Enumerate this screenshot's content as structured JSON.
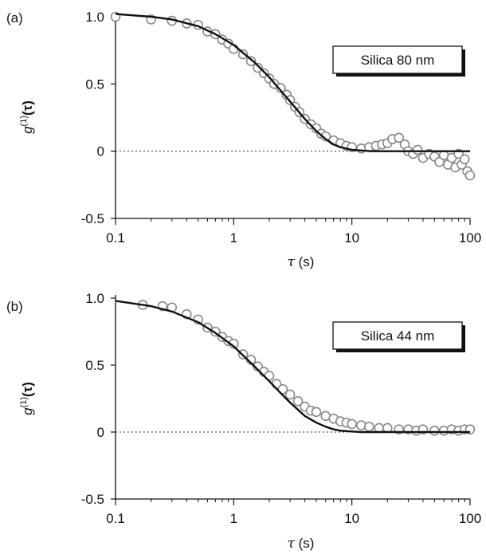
{
  "chart_data": [
    {
      "type": "scatter",
      "panel_label": "(a)",
      "annotation": "Silica 80 nm",
      "xlabel": {
        "symbol": "τ",
        "unit": " (s)"
      },
      "ylabel": {
        "base": "g",
        "sup": "(1)",
        "arg": "(τ)"
      },
      "xscale": "log",
      "xlim": [
        0.1,
        100
      ],
      "ylim": [
        -0.5,
        1.0
      ],
      "xticks": [
        {
          "value": 0.1,
          "label": "0.1"
        },
        {
          "value": 1,
          "label": "1"
        },
        {
          "value": 10,
          "label": "10"
        },
        {
          "value": 100,
          "label": "100"
        }
      ],
      "yticks": [
        {
          "value": 1.0,
          "label": "1.0"
        },
        {
          "value": 0.5,
          "label": "0.5"
        },
        {
          "value": 0,
          "label": "0"
        },
        {
          "value": -0.5,
          "label": "-0.5"
        }
      ],
      "reference_line_y": 0,
      "series": [
        {
          "kind": "points",
          "x": [
            0.1,
            0.2,
            0.3,
            0.4,
            0.5,
            0.6,
            0.7,
            0.8,
            0.9,
            1.0,
            1.2,
            1.4,
            1.6,
            1.8,
            2.0,
            2.2,
            2.5,
            2.8,
            3.0,
            3.3,
            3.6,
            4.0,
            4.5,
            5.0,
            5.5,
            6.0,
            7.0,
            8.0,
            9.0,
            10,
            12,
            14,
            16,
            18,
            20,
            22,
            25,
            28,
            30,
            33,
            36,
            40,
            45,
            50,
            55,
            60,
            65,
            70,
            75,
            80,
            85,
            90,
            95,
            100
          ],
          "y": [
            1.0,
            0.98,
            0.97,
            0.95,
            0.94,
            0.89,
            0.87,
            0.83,
            0.8,
            0.76,
            0.72,
            0.67,
            0.62,
            0.58,
            0.54,
            0.5,
            0.47,
            0.42,
            0.38,
            0.33,
            0.29,
            0.24,
            0.2,
            0.17,
            0.13,
            0.11,
            0.08,
            0.06,
            0.04,
            0.03,
            0.02,
            0.03,
            0.04,
            0.05,
            0.06,
            0.09,
            0.1,
            0.05,
            0.0,
            -0.02,
            0.01,
            -0.05,
            -0.02,
            -0.04,
            -0.08,
            -0.03,
            -0.1,
            -0.05,
            -0.12,
            -0.02,
            -0.1,
            -0.06,
            -0.15,
            -0.18
          ]
        },
        {
          "kind": "fit",
          "x": [
            0.1,
            0.2,
            0.3,
            0.5,
            0.7,
            1.0,
            1.5,
            2.0,
            2.5,
            3.0,
            4.0,
            5.0,
            6.0,
            7.0,
            8.0,
            10,
            12,
            15,
            20,
            30,
            50,
            100
          ],
          "y": [
            1.02,
            1.0,
            0.98,
            0.93,
            0.87,
            0.79,
            0.66,
            0.55,
            0.45,
            0.37,
            0.24,
            0.15,
            0.09,
            0.05,
            0.03,
            0.01,
            0.005,
            0.0,
            0.0,
            0.0,
            0.0,
            0.0
          ]
        }
      ]
    },
    {
      "type": "scatter",
      "panel_label": "(b)",
      "annotation": "Silica 44 nm",
      "xlabel": {
        "symbol": "τ",
        "unit": " (s)"
      },
      "ylabel": {
        "base": "g",
        "sup": "(1)",
        "arg": "(τ)"
      },
      "xscale": "log",
      "xlim": [
        0.1,
        100
      ],
      "ylim": [
        -0.5,
        1.0
      ],
      "xticks": [
        {
          "value": 0.1,
          "label": "0.1"
        },
        {
          "value": 1,
          "label": "1"
        },
        {
          "value": 10,
          "label": "10"
        },
        {
          "value": 100,
          "label": "100"
        }
      ],
      "yticks": [
        {
          "value": 1.0,
          "label": "1.0"
        },
        {
          "value": 0.5,
          "label": "0.5"
        },
        {
          "value": 0,
          "label": "0"
        },
        {
          "value": -0.5,
          "label": "-0.5"
        }
      ],
      "reference_line_y": 0,
      "series": [
        {
          "kind": "points",
          "x": [
            0.17,
            0.25,
            0.3,
            0.4,
            0.5,
            0.6,
            0.7,
            0.8,
            0.9,
            1.0,
            1.2,
            1.4,
            1.6,
            1.8,
            2.0,
            2.3,
            2.6,
            3.0,
            3.5,
            4.0,
            4.5,
            5.0,
            6.0,
            7.0,
            8.0,
            9.0,
            10,
            12,
            14,
            17,
            20,
            25,
            30,
            35,
            40,
            50,
            60,
            70,
            80,
            90,
            100
          ],
          "y": [
            0.95,
            0.94,
            0.93,
            0.88,
            0.84,
            0.78,
            0.75,
            0.71,
            0.68,
            0.66,
            0.58,
            0.54,
            0.49,
            0.45,
            0.42,
            0.36,
            0.32,
            0.28,
            0.23,
            0.19,
            0.16,
            0.15,
            0.12,
            0.1,
            0.08,
            0.07,
            0.06,
            0.05,
            0.04,
            0.03,
            0.03,
            0.02,
            0.02,
            0.01,
            0.02,
            0.01,
            0.01,
            0.02,
            0.01,
            0.02,
            0.02
          ]
        },
        {
          "kind": "fit",
          "x": [
            0.1,
            0.2,
            0.3,
            0.5,
            0.7,
            1.0,
            1.5,
            2.0,
            2.5,
            3.0,
            4.0,
            5.0,
            6.0,
            7.0,
            8.0,
            10,
            12,
            15,
            20,
            30,
            50,
            100
          ],
          "y": [
            0.98,
            0.94,
            0.9,
            0.82,
            0.74,
            0.64,
            0.49,
            0.38,
            0.29,
            0.22,
            0.12,
            0.07,
            0.04,
            0.02,
            0.01,
            0.004,
            0.0,
            0.0,
            0.0,
            0.0,
            0.0,
            0.0
          ]
        }
      ]
    }
  ]
}
